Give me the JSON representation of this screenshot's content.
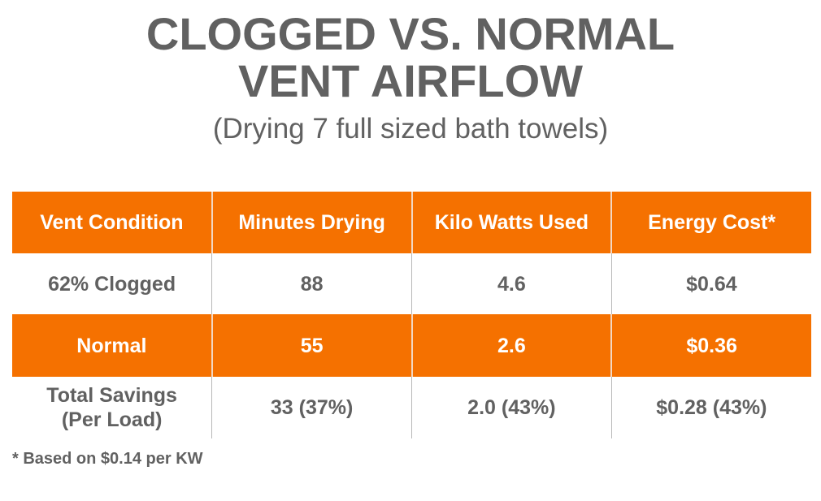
{
  "title": {
    "line1": "CLOGGED VS. NORMAL",
    "line2": "VENT AIRFLOW",
    "subtitle": "(Drying 7 full sized bath towels)"
  },
  "table": {
    "headers": [
      "Vent Condition",
      "Minutes Drying",
      "Kilo Watts Used",
      "Energy Cost*"
    ],
    "rows": [
      [
        "62% Clogged",
        "88",
        "4.6",
        "$0.64"
      ],
      [
        "Normal",
        "55",
        "2.6",
        "$0.36"
      ],
      [
        "Total Savings\n(Per Load)",
        "33 (37%)",
        "2.0 (43%)",
        "$0.28 (43%)"
      ]
    ]
  },
  "footnote": "* Based on $0.14 per KW",
  "colors": {
    "accent": "#f57100",
    "text": "#616161",
    "background": "#ffffff"
  }
}
